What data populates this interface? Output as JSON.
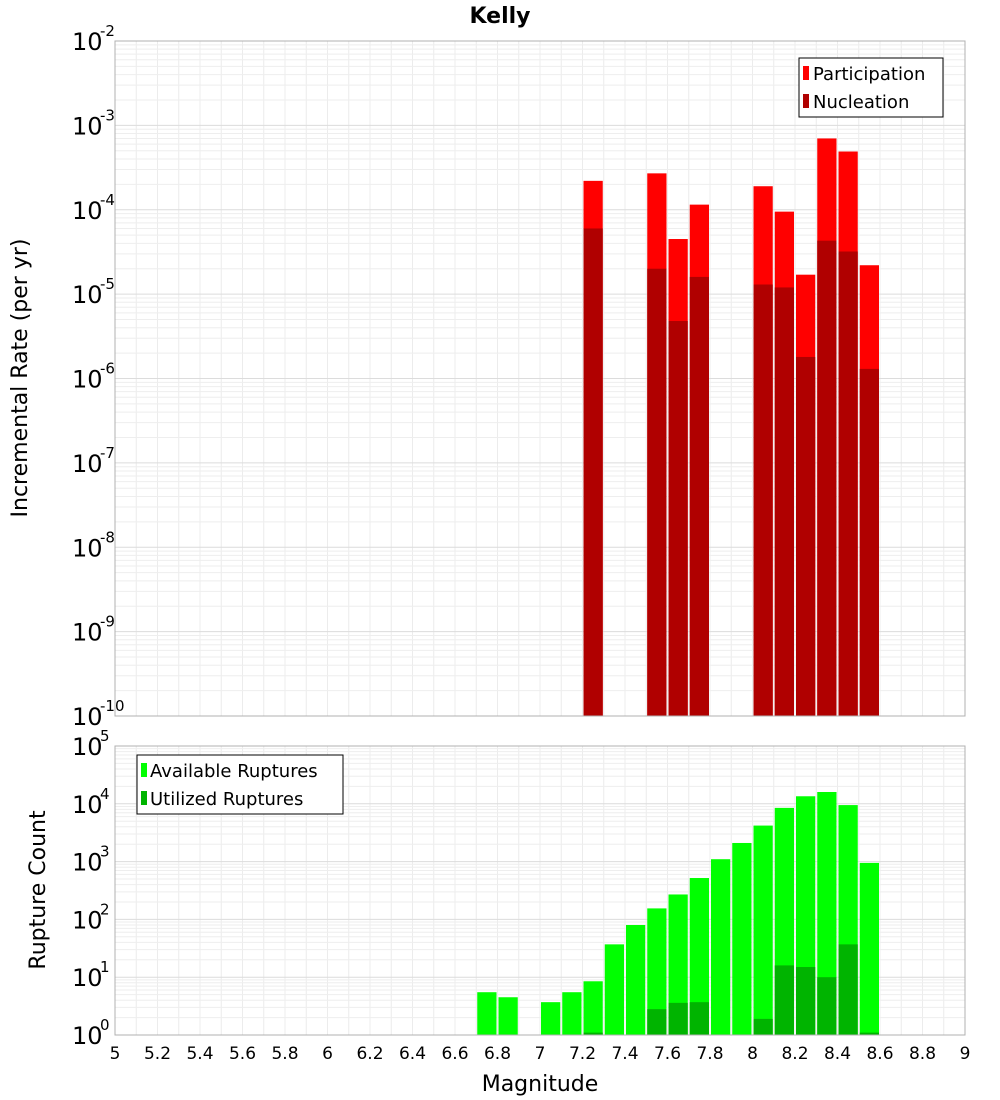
{
  "chart_data": [
    {
      "type": "bar",
      "title": "Kelly",
      "xlabel": "Magnitude",
      "ylabel": "Incremental Rate (per yr)",
      "yscale": "log",
      "ylim_exp": [
        -10,
        -2
      ],
      "xlim": [
        5,
        9
      ],
      "bin_width": 0.1,
      "legend": {
        "position": "top-right",
        "entries": [
          "Participation",
          "Nucleation"
        ]
      },
      "series": [
        {
          "name": "Participation",
          "color": "#ff0000",
          "x": [
            7.25,
            7.55,
            7.65,
            7.75,
            8.05,
            8.15,
            8.25,
            8.35,
            8.45,
            8.55
          ],
          "values": [
            0.00022,
            0.00027,
            4.5e-05,
            0.000115,
            0.00019,
            9.5e-05,
            1.7e-05,
            0.0007,
            0.00049,
            2.2e-05
          ]
        },
        {
          "name": "Nucleation",
          "color": "#b00000",
          "x": [
            7.25,
            7.55,
            7.65,
            7.75,
            8.05,
            8.15,
            8.25,
            8.35,
            8.45,
            8.55
          ],
          "values": [
            6e-05,
            2e-05,
            4.8e-06,
            1.6e-05,
            1.3e-05,
            1.2e-05,
            1.8e-06,
            4.3e-05,
            3.2e-05,
            1.3e-06
          ]
        }
      ]
    },
    {
      "type": "bar",
      "title": "",
      "xlabel": "Magnitude",
      "ylabel": "Rupture Count",
      "yscale": "log",
      "ylim_exp": [
        0,
        5
      ],
      "xlim": [
        5,
        9
      ],
      "bin_width": 0.1,
      "legend": {
        "position": "top-left",
        "entries": [
          "Available Ruptures",
          "Utilized Ruptures"
        ]
      },
      "series": [
        {
          "name": "Available Ruptures",
          "color": "#00ff00",
          "x": [
            6.75,
            6.85,
            7.05,
            7.15,
            7.25,
            7.35,
            7.45,
            7.55,
            7.65,
            7.75,
            7.85,
            7.95,
            8.05,
            8.15,
            8.25,
            8.35,
            8.45,
            8.55
          ],
          "values": [
            5.5,
            4.5,
            3.7,
            5.5,
            8.5,
            37,
            80,
            155,
            270,
            520,
            1100,
            2100,
            4200,
            8500,
            13500,
            16000,
            9500,
            950
          ]
        },
        {
          "name": "Utilized Ruptures",
          "color": "#00b400",
          "x": [
            7.25,
            7.55,
            7.65,
            7.75,
            8.05,
            8.15,
            8.25,
            8.35,
            8.45,
            8.55
          ],
          "values": [
            1.1,
            2.8,
            3.6,
            3.7,
            1.9,
            16,
            15,
            10,
            37,
            1.1
          ]
        }
      ]
    }
  ],
  "x_ticks": [
    "5",
    "5.2",
    "5.4",
    "5.6",
    "5.8",
    "6",
    "6.2",
    "6.4",
    "6.6",
    "6.8",
    "7",
    "7.2",
    "7.4",
    "7.6",
    "7.8",
    "8",
    "8.2",
    "8.4",
    "8.6",
    "8.8",
    "9"
  ],
  "tick_base": "10",
  "top_y_exponents": [
    "-10",
    "-9",
    "-8",
    "-7",
    "-6",
    "-5",
    "-4",
    "-3",
    "-2"
  ],
  "bottom_y_exponents": [
    "0",
    "1",
    "2",
    "3",
    "4",
    "5"
  ]
}
